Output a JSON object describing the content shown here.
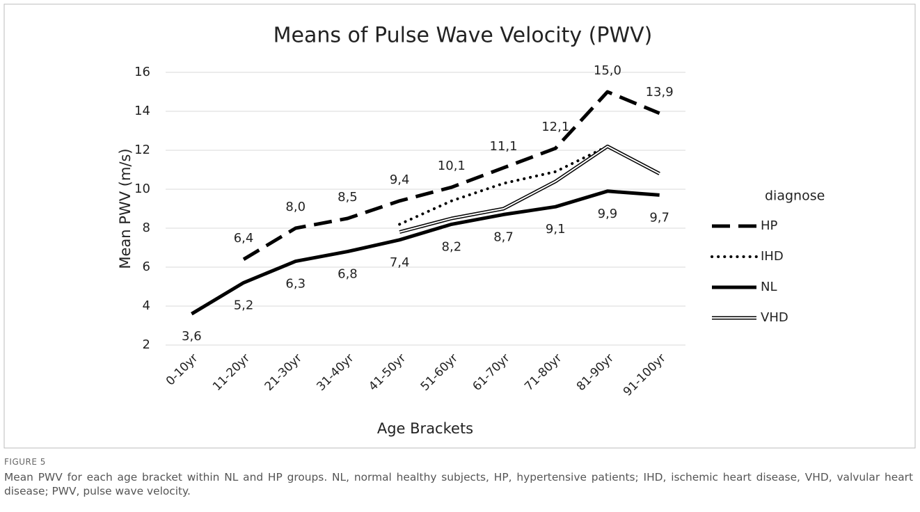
{
  "chart_data": {
    "type": "line",
    "title": "Means of Pulse Wave Velocity (PWV)",
    "x_label": "Age Brackets",
    "y_label": "Mean PWV (m/s)",
    "legend_title": "diagnose",
    "legend_position": "right",
    "grid": true,
    "categories": [
      "0-10yr",
      "11-20yr",
      "21-30yr",
      "31-40yr",
      "41-50yr",
      "51-60yr",
      "61-70yr",
      "71-80yr",
      "81-90yr",
      "91-100yr"
    ],
    "ylim": [
      2,
      16
    ],
    "yticks": [
      2,
      4,
      6,
      8,
      10,
      12,
      14,
      16
    ],
    "series": [
      {
        "name": "HP",
        "color": "#000000",
        "style": "dashed",
        "label_side": "above",
        "values": [
          null,
          6.4,
          8.0,
          8.5,
          9.4,
          10.1,
          11.1,
          12.1,
          15.0,
          13.9
        ],
        "value_labels": [
          null,
          "6,4",
          "8,0",
          "8,5",
          "9,4",
          "10,1",
          "11,1",
          "12,1",
          "15,0",
          "13,9"
        ]
      },
      {
        "name": "IHD",
        "color": "#000000",
        "style": "dotted",
        "values": [
          null,
          null,
          null,
          null,
          8.2,
          9.4,
          10.3,
          10.9,
          12.2,
          null
        ]
      },
      {
        "name": "NL",
        "color": "#000000",
        "style": "solid",
        "label_side": "below",
        "values": [
          3.6,
          5.2,
          6.3,
          6.8,
          7.4,
          8.2,
          8.7,
          9.1,
          9.9,
          9.7
        ],
        "value_labels": [
          "3,6",
          "5,2",
          "6,3",
          "6,8",
          "7,4",
          "8,2",
          "8,7",
          "9,1",
          "9,9",
          "9,7"
        ]
      },
      {
        "name": "VHD",
        "color": "#000000",
        "style": "double",
        "values": [
          null,
          null,
          null,
          null,
          7.8,
          8.5,
          9.0,
          10.4,
          12.2,
          10.8
        ]
      }
    ]
  },
  "caption": {
    "label": "FIGURE 5",
    "text": "Mean PWV for each age bracket within NL and HP groups. NL, normal healthy subjects, HP, hypertensive patients; IHD, ischemic heart disease, VHD, valvular heart disease; PWV, pulse wave velocity."
  }
}
